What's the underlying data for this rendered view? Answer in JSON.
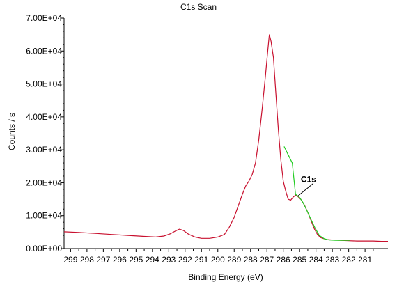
{
  "chart_data": {
    "type": "line",
    "title": "C1s Scan",
    "xlabel": "Binding Energy (eV)",
    "ylabel": "Counts / s",
    "x_reversed": true,
    "xlim": [
      299.4,
      279.6
    ],
    "ylim": [
      0,
      70000
    ],
    "x_ticks": [
      {
        "value": 299,
        "label": "299"
      },
      {
        "value": 298,
        "label": "298"
      },
      {
        "value": 297,
        "label": "297"
      },
      {
        "value": 296,
        "label": "296"
      },
      {
        "value": 295,
        "label": "295"
      },
      {
        "value": 294,
        "label": "294"
      },
      {
        "value": 293,
        "label": "293"
      },
      {
        "value": 292,
        "label": "292"
      },
      {
        "value": 291,
        "label": "291"
      },
      {
        "value": 290,
        "label": "290"
      },
      {
        "value": 289,
        "label": "289"
      },
      {
        "value": 288,
        "label": "288"
      },
      {
        "value": 287,
        "label": "287"
      },
      {
        "value": 286,
        "label": "286"
      },
      {
        "value": 285,
        "label": "285"
      },
      {
        "value": 284,
        "label": "284"
      },
      {
        "value": 283,
        "label": "283"
      },
      {
        "value": 282,
        "label": "282"
      },
      {
        "value": 281,
        "label": "281"
      }
    ],
    "y_ticks": [
      {
        "value": 0,
        "label": "0.00E+00"
      },
      {
        "value": 10000,
        "label": "1.00E+04"
      },
      {
        "value": 20000,
        "label": "2.00E+04"
      },
      {
        "value": 30000,
        "label": "3.00E+04"
      },
      {
        "value": 40000,
        "label": "4.00E+04"
      },
      {
        "value": 50000,
        "label": "5.00E+04"
      },
      {
        "value": 60000,
        "label": "6.00E+04"
      },
      {
        "value": 70000,
        "label": "7.00E+04"
      }
    ],
    "grid": false,
    "series": [
      {
        "color": "#c8102e",
        "points": [
          [
            299.4,
            5100
          ],
          [
            298.5,
            4900
          ],
          [
            297.5,
            4600
          ],
          [
            296.5,
            4300
          ],
          [
            295.5,
            4000
          ],
          [
            294.5,
            3700
          ],
          [
            293.8,
            3500
          ],
          [
            293.3,
            3800
          ],
          [
            292.9,
            4500
          ],
          [
            292.6,
            5300
          ],
          [
            292.35,
            5900
          ],
          [
            292.1,
            5500
          ],
          [
            291.8,
            4400
          ],
          [
            291.4,
            3500
          ],
          [
            291.0,
            3100
          ],
          [
            290.5,
            3100
          ],
          [
            290.0,
            3500
          ],
          [
            289.6,
            4300
          ],
          [
            289.3,
            6500
          ],
          [
            289.0,
            9500
          ],
          [
            288.75,
            13000
          ],
          [
            288.5,
            16500
          ],
          [
            288.3,
            19000
          ],
          [
            288.1,
            20500
          ],
          [
            287.9,
            22500
          ],
          [
            287.7,
            26000
          ],
          [
            287.5,
            33000
          ],
          [
            287.3,
            42000
          ],
          [
            287.1,
            52000
          ],
          [
            286.95,
            60000
          ],
          [
            286.85,
            65000
          ],
          [
            286.75,
            63000
          ],
          [
            286.6,
            58000
          ],
          [
            286.45,
            47000
          ],
          [
            286.3,
            36000
          ],
          [
            286.15,
            27000
          ],
          [
            286.0,
            20500
          ],
          [
            285.85,
            17500
          ],
          [
            285.7,
            15000
          ],
          [
            285.55,
            14700
          ],
          [
            285.4,
            15600
          ],
          [
            285.25,
            16200
          ],
          [
            285.1,
            15800
          ],
          [
            284.9,
            14800
          ],
          [
            284.7,
            13200
          ],
          [
            284.5,
            11000
          ],
          [
            284.3,
            8500
          ],
          [
            284.1,
            6000
          ],
          [
            283.9,
            4200
          ],
          [
            283.7,
            3300
          ],
          [
            283.4,
            2800
          ],
          [
            283.0,
            2600
          ],
          [
            282.5,
            2500
          ],
          [
            282.0,
            2400
          ],
          [
            281.5,
            2300
          ],
          [
            281.0,
            2300
          ],
          [
            280.5,
            2300
          ],
          [
            280.0,
            2200
          ],
          [
            279.6,
            2200
          ]
        ]
      },
      {
        "color": "#22cc22",
        "points": [
          [
            285.95,
            31000
          ],
          [
            285.7,
            28500
          ],
          [
            285.45,
            26000
          ],
          [
            285.25,
            16500
          ],
          [
            285.0,
            15500
          ],
          [
            284.8,
            14000
          ],
          [
            284.55,
            11500
          ],
          [
            284.3,
            8800
          ],
          [
            284.05,
            6200
          ],
          [
            283.8,
            4000
          ],
          [
            283.5,
            3000
          ],
          [
            283.2,
            2600
          ],
          [
            282.8,
            2500
          ],
          [
            282.3,
            2500
          ],
          [
            281.9,
            2500
          ]
        ]
      }
    ],
    "annotations": [
      {
        "text": "C1s",
        "x": 285.1,
        "y": 16000
      }
    ]
  }
}
